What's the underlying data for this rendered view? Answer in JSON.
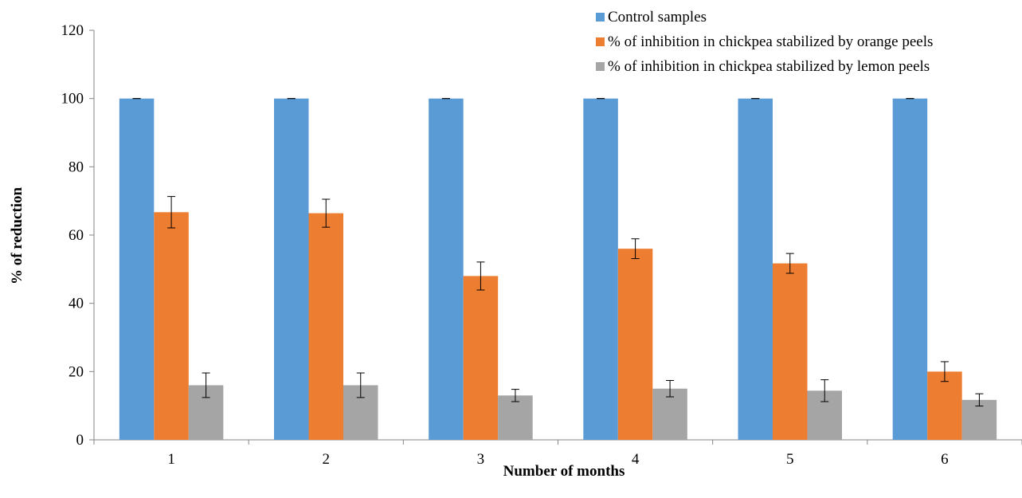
{
  "chart_data": {
    "type": "bar",
    "categories": [
      "1",
      "2",
      "3",
      "4",
      "5",
      "6"
    ],
    "series": [
      {
        "name": "Control samples",
        "color": "#5B9BD5",
        "values": [
          100,
          100,
          100,
          100,
          100,
          100
        ],
        "errors": [
          0,
          0,
          0,
          0,
          0,
          0
        ]
      },
      {
        "name": "% of inhibition in chickpea stabilized by orange peels",
        "color": "#ED7D31",
        "values": [
          66.7,
          66.4,
          48,
          56,
          51.7,
          20
        ],
        "errors": [
          4.6,
          4.1,
          4.1,
          2.9,
          2.9,
          2.9
        ]
      },
      {
        "name": "% of inhibition in chickpea stabilized by lemon peels",
        "color": "#A5A5A5",
        "values": [
          16,
          16,
          13,
          15,
          14.4,
          11.7
        ],
        "errors": [
          3.6,
          3.6,
          1.8,
          2.4,
          3.2,
          1.8
        ]
      }
    ],
    "xlabel": "Number of months",
    "ylabel": "% of reduction",
    "ylim": [
      0,
      120
    ],
    "yticks": [
      0,
      20,
      40,
      60,
      80,
      100,
      120
    ],
    "grid": false,
    "legend_position": "top-right"
  }
}
